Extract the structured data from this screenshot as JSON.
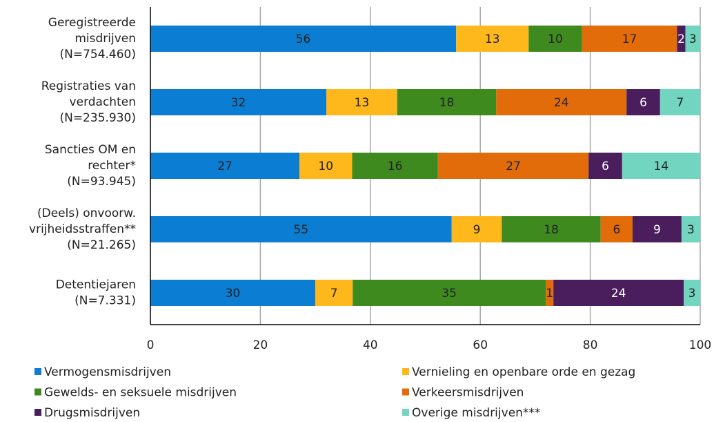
{
  "chart_data": {
    "type": "stacked_barh",
    "categories": [
      [
        "Geregistreerde",
        "misdrijven",
        "(N=754.460)"
      ],
      [
        "Registraties van",
        "verdachten",
        "(N=235.930)"
      ],
      [
        "Sancties OM en",
        "rechter*",
        "(N=93.945)"
      ],
      [
        "(Deels) onvoorw.",
        "vrijheidsstraffen**",
        "(N=21.265)"
      ],
      [
        "Detentiejaren",
        "(N=7.331)"
      ]
    ],
    "series": [
      {
        "name": "Vermogensmisdrijven",
        "color": "#0b7dd2",
        "values": [
          55.6,
          32.0,
          27.1,
          54.8,
          30.0
        ],
        "value_labels": [
          "56",
          "32",
          "27",
          "55",
          "30"
        ]
      },
      {
        "name": "Vernieling en openbare orde en gezag",
        "color": "#ffb81c",
        "values": [
          13.2,
          12.9,
          9.6,
          9.1,
          6.8
        ],
        "value_labels": [
          "13",
          "13",
          "10",
          "9",
          "7"
        ]
      },
      {
        "name": "Gewelds- en seksuele misdrijven",
        "color": "#3f8a1f",
        "values": [
          9.7,
          18.0,
          15.6,
          18.0,
          35.1
        ],
        "value_labels": [
          "10",
          "18",
          "16",
          "18",
          "35"
        ]
      },
      {
        "name": "Verkeersmisdrijven",
        "color": "#e36c0a",
        "values": [
          17.3,
          23.7,
          27.4,
          5.8,
          1.4
        ],
        "value_labels": [
          "17",
          "24",
          "27",
          "6",
          "1"
        ]
      },
      {
        "name": "Drugsmisdrijven",
        "color": "#4a1d5c",
        "values": [
          1.5,
          6.1,
          6.1,
          8.9,
          23.7
        ],
        "value_labels": [
          "2",
          "6",
          "6",
          "9",
          "24"
        ]
      },
      {
        "name": "Overige misdrijven***",
        "color": "#72d5bf",
        "values": [
          2.7,
          7.3,
          14.2,
          3.4,
          3.0
        ],
        "value_labels": [
          "3",
          "7",
          "14",
          "3",
          "3"
        ]
      }
    ],
    "xlim": [
      0,
      100
    ],
    "xticks": [
      0,
      20,
      40,
      60,
      80,
      100
    ],
    "grid": true,
    "legend": "bottom"
  }
}
